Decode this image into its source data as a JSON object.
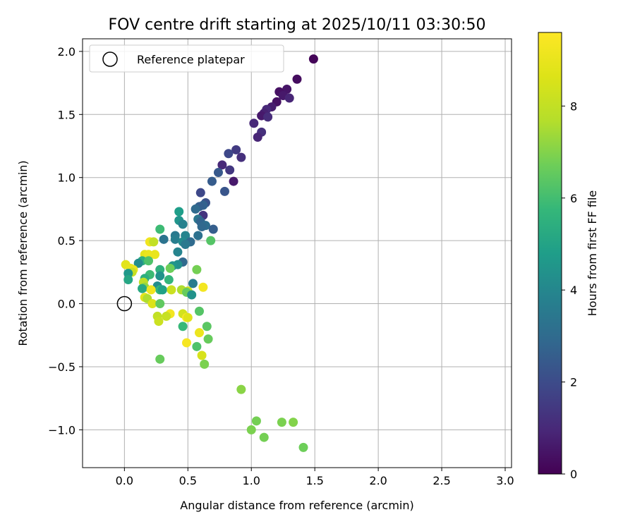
{
  "chart_data": {
    "type": "scatter",
    "title": "FOV centre drift starting at 2025/10/11 03:30:50",
    "xlabel": "Angular distance from reference (arcmin)",
    "ylabel": "Rotation from reference (arcmin)",
    "xlim": [
      -0.33,
      3.05
    ],
    "ylim": [
      -1.3,
      2.1
    ],
    "xticks": [
      0.0,
      0.5,
      1.0,
      1.5,
      2.0,
      2.5,
      3.0
    ],
    "yticks": [
      -1.0,
      -0.5,
      0.0,
      0.5,
      1.0,
      1.5,
      2.0
    ],
    "xtick_labels": [
      "0.0",
      "0.5",
      "1.0",
      "1.5",
      "2.0",
      "2.5",
      "3.0"
    ],
    "ytick_labels": [
      "−1.0",
      "−0.5",
      "0.0",
      "0.5",
      "1.0",
      "1.5",
      "2.0"
    ],
    "grid": true,
    "legend": {
      "position": "top-left",
      "entries": [
        "Reference platepar"
      ]
    },
    "reference_point": {
      "x": 0.0,
      "y": 0.0
    },
    "colorbar": {
      "label": "Hours from first FF file",
      "colormap": "viridis",
      "range": [
        0,
        9.6
      ],
      "ticks": [
        0,
        2,
        4,
        6,
        8
      ],
      "tick_labels": [
        "0",
        "2",
        "4",
        "6",
        "8"
      ]
    },
    "series": [
      {
        "points": [
          {
            "x": 1.49,
            "y": 1.94,
            "h": 0.1
          },
          {
            "x": 1.36,
            "y": 1.78,
            "h": 0.3
          },
          {
            "x": 1.28,
            "y": 1.7,
            "h": 0.5
          },
          {
            "x": 1.22,
            "y": 1.68,
            "h": 0.4
          },
          {
            "x": 1.25,
            "y": 1.65,
            "h": 0.6
          },
          {
            "x": 1.3,
            "y": 1.63,
            "h": 0.9
          },
          {
            "x": 1.2,
            "y": 1.6,
            "h": 0.4
          },
          {
            "x": 1.16,
            "y": 1.56,
            "h": 0.7
          },
          {
            "x": 1.12,
            "y": 1.54,
            "h": 1.0
          },
          {
            "x": 1.1,
            "y": 1.51,
            "h": 0.8
          },
          {
            "x": 1.08,
            "y": 1.49,
            "h": 0.6
          },
          {
            "x": 1.13,
            "y": 1.48,
            "h": 1.1
          },
          {
            "x": 1.02,
            "y": 1.43,
            "h": 1.0
          },
          {
            "x": 1.08,
            "y": 1.36,
            "h": 1.2
          },
          {
            "x": 1.05,
            "y": 1.32,
            "h": 0.9
          },
          {
            "x": 0.88,
            "y": 1.22,
            "h": 1.5
          },
          {
            "x": 0.82,
            "y": 1.19,
            "h": 1.9
          },
          {
            "x": 0.92,
            "y": 1.16,
            "h": 1.2
          },
          {
            "x": 0.77,
            "y": 1.1,
            "h": 1.0
          },
          {
            "x": 0.83,
            "y": 1.06,
            "h": 1.4
          },
          {
            "x": 0.74,
            "y": 1.04,
            "h": 2.4
          },
          {
            "x": 0.69,
            "y": 0.97,
            "h": 2.5
          },
          {
            "x": 0.86,
            "y": 0.97,
            "h": 0.6
          },
          {
            "x": 0.79,
            "y": 0.89,
            "h": 2.3
          },
          {
            "x": 0.6,
            "y": 0.88,
            "h": 1.9
          },
          {
            "x": 0.64,
            "y": 0.8,
            "h": 2.2
          },
          {
            "x": 0.62,
            "y": 0.78,
            "h": 2.7
          },
          {
            "x": 0.59,
            "y": 0.77,
            "h": 2.6
          },
          {
            "x": 0.56,
            "y": 0.75,
            "h": 3.0
          },
          {
            "x": 0.43,
            "y": 0.73,
            "h": 4.8
          },
          {
            "x": 0.62,
            "y": 0.7,
            "h": 1.3
          },
          {
            "x": 0.58,
            "y": 0.67,
            "h": 3.4
          },
          {
            "x": 0.43,
            "y": 0.66,
            "h": 4.5
          },
          {
            "x": 0.6,
            "y": 0.65,
            "h": 2.8
          },
          {
            "x": 0.46,
            "y": 0.63,
            "h": 3.8
          },
          {
            "x": 0.64,
            "y": 0.62,
            "h": 3.1
          },
          {
            "x": 0.61,
            "y": 0.61,
            "h": 2.9
          },
          {
            "x": 0.7,
            "y": 0.59,
            "h": 2.6
          },
          {
            "x": 0.28,
            "y": 0.59,
            "h": 5.9
          },
          {
            "x": 0.4,
            "y": 0.54,
            "h": 3.5
          },
          {
            "x": 0.48,
            "y": 0.54,
            "h": 3.9
          },
          {
            "x": 0.58,
            "y": 0.54,
            "h": 3.2
          },
          {
            "x": 0.31,
            "y": 0.51,
            "h": 3.3
          },
          {
            "x": 0.4,
            "y": 0.51,
            "h": 3.7
          },
          {
            "x": 0.68,
            "y": 0.5,
            "h": 6.3
          },
          {
            "x": 0.46,
            "y": 0.49,
            "h": 4.1
          },
          {
            "x": 0.52,
            "y": 0.49,
            "h": 3.0
          },
          {
            "x": 0.2,
            "y": 0.49,
            "h": 9.2
          },
          {
            "x": 0.23,
            "y": 0.49,
            "h": 8.0
          },
          {
            "x": 0.48,
            "y": 0.47,
            "h": 3.5
          },
          {
            "x": 0.42,
            "y": 0.41,
            "h": 3.9
          },
          {
            "x": 0.16,
            "y": 0.39,
            "h": 8.9
          },
          {
            "x": 0.19,
            "y": 0.39,
            "h": 9.1
          },
          {
            "x": 0.24,
            "y": 0.39,
            "h": 9.0
          },
          {
            "x": 0.14,
            "y": 0.34,
            "h": 5.4
          },
          {
            "x": 0.19,
            "y": 0.34,
            "h": 6.2
          },
          {
            "x": 0.46,
            "y": 0.33,
            "h": 2.9
          },
          {
            "x": 0.11,
            "y": 0.32,
            "h": 4.2
          },
          {
            "x": 0.42,
            "y": 0.31,
            "h": 4.3
          },
          {
            "x": 0.01,
            "y": 0.31,
            "h": 8.8
          },
          {
            "x": 0.38,
            "y": 0.3,
            "h": 4.5
          },
          {
            "x": 0.36,
            "y": 0.28,
            "h": 6.7
          },
          {
            "x": 0.05,
            "y": 0.28,
            "h": 8.9
          },
          {
            "x": 0.07,
            "y": 0.27,
            "h": 9.0
          },
          {
            "x": 0.28,
            "y": 0.27,
            "h": 5.5
          },
          {
            "x": 0.57,
            "y": 0.27,
            "h": 6.8
          },
          {
            "x": 0.06,
            "y": 0.25,
            "h": 8.1
          },
          {
            "x": 0.03,
            "y": 0.24,
            "h": 4.6
          },
          {
            "x": 0.2,
            "y": 0.23,
            "h": 5.9
          },
          {
            "x": 0.28,
            "y": 0.22,
            "h": 4.4
          },
          {
            "x": 0.16,
            "y": 0.2,
            "h": 5.4
          },
          {
            "x": 0.35,
            "y": 0.19,
            "h": 5.7
          },
          {
            "x": 0.03,
            "y": 0.19,
            "h": 5.1
          },
          {
            "x": 0.15,
            "y": 0.17,
            "h": 7.9
          },
          {
            "x": 0.54,
            "y": 0.16,
            "h": 3.6
          },
          {
            "x": 0.26,
            "y": 0.14,
            "h": 4.2
          },
          {
            "x": 0.16,
            "y": 0.13,
            "h": 7.2
          },
          {
            "x": 0.62,
            "y": 0.13,
            "h": 9.3
          },
          {
            "x": 0.14,
            "y": 0.12,
            "h": 5.2
          },
          {
            "x": 0.28,
            "y": 0.11,
            "h": 5.6
          },
          {
            "x": 0.3,
            "y": 0.11,
            "h": 4.9
          },
          {
            "x": 0.37,
            "y": 0.11,
            "h": 8.2
          },
          {
            "x": 0.45,
            "y": 0.11,
            "h": 7.6
          },
          {
            "x": 0.21,
            "y": 0.11,
            "h": 9.2
          },
          {
            "x": 0.5,
            "y": 0.1,
            "h": 8.3
          },
          {
            "x": 0.49,
            "y": 0.09,
            "h": 6.6
          },
          {
            "x": 0.53,
            "y": 0.07,
            "h": 4.4
          },
          {
            "x": 0.16,
            "y": 0.05,
            "h": 8.8
          },
          {
            "x": 0.18,
            "y": 0.04,
            "h": 7.6
          },
          {
            "x": 0.22,
            "y": 0.0,
            "h": 8.6
          },
          {
            "x": 0.28,
            "y": 0.0,
            "h": 6.5
          },
          {
            "x": 0.59,
            "y": -0.06,
            "h": 6.3
          },
          {
            "x": 0.36,
            "y": -0.08,
            "h": 9.3
          },
          {
            "x": 0.46,
            "y": -0.08,
            "h": 8.4
          },
          {
            "x": 0.33,
            "y": -0.1,
            "h": 8.1
          },
          {
            "x": 0.26,
            "y": -0.1,
            "h": 8.0
          },
          {
            "x": 0.49,
            "y": -0.11,
            "h": 9.5
          },
          {
            "x": 0.5,
            "y": -0.11,
            "h": 8.7
          },
          {
            "x": 0.27,
            "y": -0.14,
            "h": 8.2
          },
          {
            "x": 0.46,
            "y": -0.18,
            "h": 5.8
          },
          {
            "x": 0.65,
            "y": -0.18,
            "h": 6.4
          },
          {
            "x": 0.59,
            "y": -0.23,
            "h": 9.1
          },
          {
            "x": 0.66,
            "y": -0.28,
            "h": 6.6
          },
          {
            "x": 0.49,
            "y": -0.31,
            "h": 9.4
          },
          {
            "x": 0.57,
            "y": -0.34,
            "h": 6.2
          },
          {
            "x": 0.61,
            "y": -0.41,
            "h": 8.5
          },
          {
            "x": 0.28,
            "y": -0.44,
            "h": 6.6
          },
          {
            "x": 0.63,
            "y": -0.48,
            "h": 6.9
          },
          {
            "x": 0.92,
            "y": -0.68,
            "h": 7.1
          },
          {
            "x": 1.04,
            "y": -0.93,
            "h": 6.8
          },
          {
            "x": 1.24,
            "y": -0.94,
            "h": 6.9
          },
          {
            "x": 1.33,
            "y": -0.94,
            "h": 7.0
          },
          {
            "x": 1.0,
            "y": -1.0,
            "h": 6.9
          },
          {
            "x": 1.1,
            "y": -1.06,
            "h": 6.8
          },
          {
            "x": 1.41,
            "y": -1.14,
            "h": 6.7
          }
        ]
      }
    ]
  }
}
